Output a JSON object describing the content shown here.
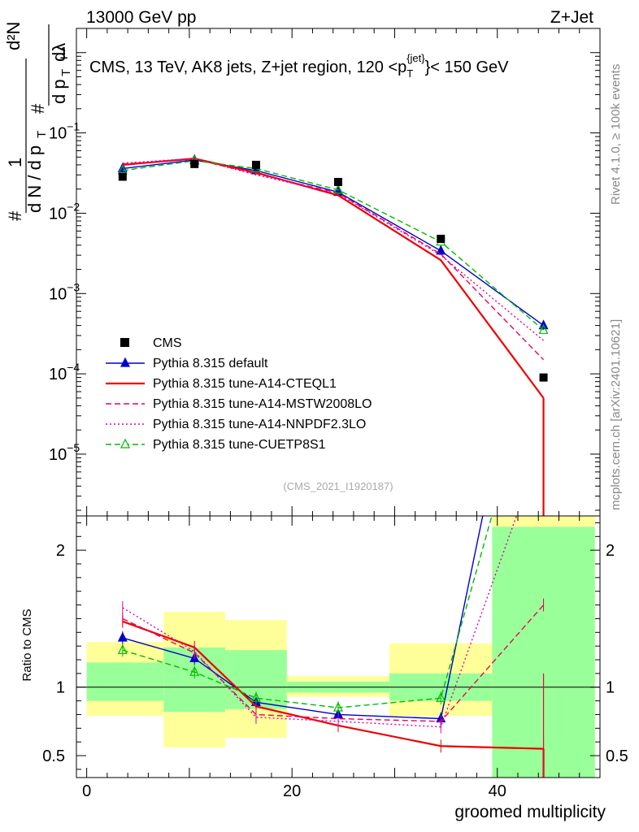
{
  "header": {
    "left": "13000 GeV pp",
    "right": "Z+Jet",
    "title": "CMS, 13 TeV, AK8 jets, Z+jet region, 120 <p_T^{jet}< 150 GeV",
    "title_main": "CMS, 13 TeV, AK8 jets, Z+jet region, 120 <p",
    "title_sup": "{jet}",
    "title_sub": "T",
    "title_end": "}< 150 GeV",
    "analysis_id": "(CMS_2021_I1920187)",
    "side_rivet": "Rivet 4.1.0, ≥ 100k events",
    "side_mcplots": "mcplots.cern.ch [arXiv:2401.10621]"
  },
  "chart_data": {
    "type": "line",
    "xlabel": "groomed multiplicity",
    "ylabel_top": "1/(dN/dp_T) d²N/(dp_T dλ)",
    "ylabel_ratio": "Ratio to CMS",
    "xlim": [
      -1,
      50
    ],
    "ylim_top": [
      1.7e-06,
      2.0
    ],
    "ylim_ratio": [
      0.34,
      2.25
    ],
    "yscale_top": "log",
    "x_ticks": [
      0,
      20,
      40
    ],
    "y_ticks_top": [
      {
        "value": 1,
        "label": "1"
      },
      {
        "value": 0.1,
        "label": "10",
        "exp": "−1"
      },
      {
        "value": 0.01,
        "label": "10",
        "exp": "−2"
      },
      {
        "value": 0.001,
        "label": "10",
        "exp": "−3"
      },
      {
        "value": 0.0001,
        "label": "10",
        "exp": "−4"
      },
      {
        "value": 1e-05,
        "label": "10",
        "exp": "−5"
      }
    ],
    "y_ticks_ratio": [
      {
        "value": 0.5,
        "label": "0.5"
      },
      {
        "value": 1,
        "label": "1"
      },
      {
        "value": 2,
        "label": "2"
      }
    ],
    "bins": [
      {
        "lo": 0,
        "hi": 7.5,
        "center": 3.5
      },
      {
        "lo": 7.5,
        "hi": 13.5,
        "center": 10.5
      },
      {
        "lo": 13.5,
        "hi": 19.5,
        "center": 16.5
      },
      {
        "lo": 19.5,
        "hi": 29.5,
        "center": 24.5
      },
      {
        "lo": 29.5,
        "hi": 39.5,
        "center": 34.5
      },
      {
        "lo": 39.5,
        "hi": 49.5,
        "center": 44.5
      }
    ],
    "band_inner": [
      [
        0.9,
        1.18
      ],
      [
        0.82,
        1.29
      ],
      [
        0.84,
        1.27
      ],
      [
        0.96,
        1.04
      ],
      [
        0.9,
        1.1
      ],
      [
        0.01,
        2.17
      ]
    ],
    "band_outer": [
      [
        0.79,
        1.33
      ],
      [
        0.56,
        1.55
      ],
      [
        0.63,
        1.49
      ],
      [
        0.93,
        1.08
      ],
      [
        0.79,
        1.32
      ],
      [
        0.01,
        2.25
      ]
    ],
    "data": {
      "name": "CMS",
      "x": [
        3.5,
        10.5,
        16.5,
        24.5,
        34.5,
        44.5
      ],
      "y": [
        0.0285,
        0.041,
        0.04,
        0.0245,
        0.0048,
        9e-05
      ]
    },
    "series": [
      {
        "name": "Pythia 8.315 default",
        "color": "#0000cc",
        "dash": "solid",
        "marker": "triangle",
        "y": [
          0.036,
          0.046,
          0.034,
          0.0183,
          0.0034,
          0.0004
        ],
        "ratio": [
          1.36,
          1.21,
          0.89,
          0.8,
          0.77,
          4.4
        ]
      },
      {
        "name": "Pythia 8.315 tune-A14-CTEQL1",
        "color": "#ee0000",
        "dash": "solid",
        "marker": "none",
        "y": [
          0.04,
          0.048,
          0.032,
          0.0167,
          0.0026,
          5e-05
        ],
        "ratio": [
          1.48,
          1.29,
          0.86,
          0.72,
          0.57,
          0.55
        ]
      },
      {
        "name": "Pythia 8.315 tune-A14-MSTW2008LO",
        "color": "#ee0055",
        "dash": "dashed",
        "marker": "none",
        "y": [
          0.041,
          0.047,
          0.031,
          0.0178,
          0.0031,
          0.00015
        ],
        "ratio": [
          1.5,
          1.25,
          0.8,
          0.77,
          0.75,
          1.6
        ]
      },
      {
        "name": "Pythia 8.315 tune-A14-NNPDF2.3LO",
        "color": "#dd00aa",
        "dash": "dotted",
        "marker": "none",
        "y": [
          0.042,
          0.048,
          0.03,
          0.0175,
          0.003,
          0.00026
        ],
        "ratio": [
          1.58,
          1.26,
          0.78,
          0.75,
          0.71,
          2.8
        ]
      },
      {
        "name": "Pythia 8.315 tune-CUETP8S1",
        "color": "#00bb00",
        "dash": "dashed",
        "marker": "open-triangle",
        "y": [
          0.034,
          0.045,
          0.036,
          0.0195,
          0.0044,
          0.00035
        ],
        "ratio": [
          1.27,
          1.11,
          0.92,
          0.85,
          0.92,
          3.6
        ]
      }
    ],
    "legend_position": "left-middle"
  }
}
